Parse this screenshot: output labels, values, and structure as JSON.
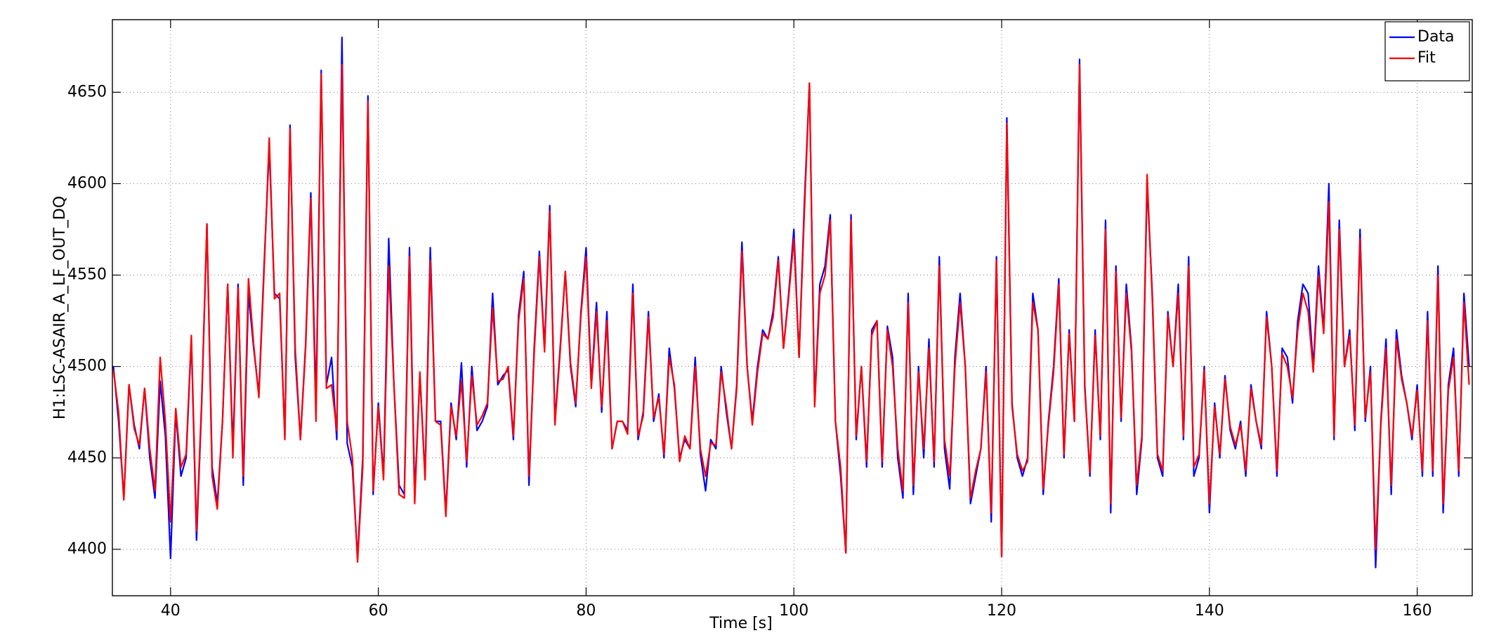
{
  "chart_data": {
    "type": "line",
    "xlabel": "Time [s]",
    "ylabel": "H1:LSC-ASAIR_A_LF_OUT_DQ",
    "x": [
      34.5,
      35,
      35.5,
      36,
      36.5,
      37,
      37.5,
      38,
      38.5,
      39,
      39.5,
      40,
      40.5,
      41,
      41.5,
      42,
      42.5,
      43,
      43.5,
      44,
      44.5,
      45,
      45.5,
      46,
      46.5,
      47,
      47.5,
      48,
      48.5,
      49,
      49.5,
      50,
      50.5,
      51,
      51.5,
      52,
      52.5,
      53,
      53.5,
      54,
      54.5,
      55,
      55.5,
      56,
      56.5,
      57,
      57.5,
      58,
      58.5,
      59,
      59.5,
      60,
      60.5,
      61,
      61.5,
      62,
      62.5,
      63,
      63.5,
      64,
      64.5,
      65,
      65.5,
      66,
      66.5,
      67,
      67.5,
      68,
      68.5,
      69,
      69.5,
      70,
      70.5,
      71,
      71.5,
      72,
      72.5,
      73,
      73.5,
      74,
      74.5,
      75,
      75.5,
      76,
      76.5,
      77,
      77.5,
      78,
      78.5,
      79,
      79.5,
      80,
      80.5,
      81,
      81.5,
      82,
      82.5,
      83,
      83.5,
      84,
      84.5,
      85,
      85.5,
      86,
      86.5,
      87,
      87.5,
      88,
      88.5,
      89,
      89.5,
      90,
      90.5,
      91,
      91.5,
      92,
      92.5,
      93,
      93.5,
      94,
      94.5,
      95,
      95.5,
      96,
      96.5,
      97,
      97.5,
      98,
      98.5,
      99,
      99.5,
      100,
      100.5,
      101,
      101.5,
      102,
      102.5,
      103,
      103.5,
      104,
      104.5,
      105,
      105.5,
      106,
      106.5,
      107,
      107.5,
      108,
      108.5,
      109,
      109.5,
      110,
      110.5,
      111,
      111.5,
      112,
      112.5,
      113,
      113.5,
      114,
      114.5,
      115,
      115.5,
      116,
      116.5,
      117,
      117.5,
      118,
      118.5,
      119,
      119.5,
      120,
      120.5,
      121,
      121.5,
      122,
      122.5,
      123,
      123.5,
      124,
      124.5,
      125,
      125.5,
      126,
      126.5,
      127,
      127.5,
      128,
      128.5,
      129,
      129.5,
      130,
      130.5,
      131,
      131.5,
      132,
      132.5,
      133,
      133.5,
      134,
      134.5,
      135,
      135.5,
      136,
      136.5,
      137,
      137.5,
      138,
      138.5,
      139,
      139.5,
      140,
      140.5,
      141,
      141.5,
      142,
      142.5,
      143,
      143.5,
      144,
      144.5,
      145,
      145.5,
      146,
      146.5,
      147,
      147.5,
      148,
      148.5,
      149,
      149.5,
      150,
      150.5,
      151,
      151.5,
      152,
      152.5,
      153,
      153.5,
      154,
      154.5,
      155,
      155.5,
      156,
      156.5,
      157,
      157.5,
      158,
      158.5,
      159,
      159.5,
      160,
      160.5,
      161,
      161.5,
      162,
      162.5,
      163,
      163.5,
      164,
      164.5,
      165
    ],
    "series": [
      {
        "name": "Data",
        "color": "#0000ff",
        "values": [
          4500,
          4470,
          4428,
          4490,
          4468,
          4455,
          4488,
          4450,
          4428,
          4492,
          4462,
          4395,
          4475,
          4440,
          4450,
          4515,
          4405,
          4480,
          4578,
          4445,
          4425,
          4470,
          4545,
          4455,
          4545,
          4435,
          4540,
          4510,
          4485,
          4555,
          4620,
          4540,
          4537,
          4462,
          4632,
          4505,
          4460,
          4512,
          4595,
          4480,
          4662,
          4490,
          4505,
          4460,
          4680,
          4458,
          4445,
          4395,
          4450,
          4648,
          4430,
          4480,
          4440,
          4570,
          4490,
          4435,
          4430,
          4565,
          4430,
          4495,
          4440,
          4565,
          4470,
          4470,
          4420,
          4480,
          4460,
          4502,
          4445,
          4500,
          4465,
          4470,
          4478,
          4540,
          4490,
          4495,
          4498,
          4460,
          4528,
          4552,
          4435,
          4510,
          4563,
          4510,
          4588,
          4470,
          4510,
          4552,
          4500,
          4478,
          4530,
          4565,
          4490,
          4535,
          4475,
          4530,
          4455,
          4470,
          4470,
          4465,
          4545,
          4460,
          4475,
          4530,
          4470,
          4485,
          4450,
          4510,
          4488,
          4450,
          4460,
          4455,
          4505,
          4452,
          4432,
          4460,
          4455,
          4500,
          4475,
          4455,
          4490,
          4568,
          4500,
          4470,
          4500,
          4520,
          4515,
          4530,
          4560,
          4510,
          4540,
          4575,
          4505,
          4588,
          4655,
          4480,
          4545,
          4555,
          4583,
          4470,
          4440,
          4398,
          4583,
          4460,
          4500,
          4445,
          4520,
          4525,
          4445,
          4522,
          4505,
          4450,
          4428,
          4540,
          4430,
          4500,
          4450,
          4515,
          4445,
          4560,
          4455,
          4433,
          4505,
          4540,
          4500,
          4425,
          4440,
          4455,
          4500,
          4415,
          4560,
          4396,
          4636,
          4480,
          4450,
          4440,
          4450,
          4540,
          4520,
          4430,
          4470,
          4500,
          4548,
          4450,
          4520,
          4470,
          4668,
          4490,
          4440,
          4520,
          4460,
          4580,
          4420,
          4555,
          4470,
          4545,
          4510,
          4430,
          4460,
          4600,
          4540,
          4450,
          4440,
          4530,
          4500,
          4545,
          4460,
          4560,
          4440,
          4450,
          4500,
          4420,
          4480,
          4450,
          4495,
          4465,
          4455,
          4470,
          4440,
          4490,
          4470,
          4455,
          4530,
          4500,
          4440,
          4510,
          4505,
          4480,
          4525,
          4545,
          4540,
          4500,
          4555,
          4520,
          4600,
          4460,
          4580,
          4500,
          4520,
          4465,
          4575,
          4470,
          4500,
          4390,
          4470,
          4515,
          4430,
          4520,
          4495,
          4480,
          4460,
          4490,
          4440,
          4530,
          4440,
          4555,
          4420,
          4490,
          4510,
          4440,
          4540,
          4500
        ]
      },
      {
        "name": "Fit",
        "color": "#ff0000",
        "values": [
          4498,
          4475,
          4427,
          4490,
          4466,
          4457,
          4488,
          4455,
          4432,
          4505,
          4470,
          4415,
          4477,
          4445,
          4452,
          4517,
          4410,
          4482,
          4578,
          4440,
          4422,
          4470,
          4545,
          4450,
          4543,
          4440,
          4548,
          4512,
          4483,
          4552,
          4625,
          4537,
          4540,
          4460,
          4630,
          4510,
          4460,
          4510,
          4592,
          4470,
          4660,
          4488,
          4490,
          4465,
          4665,
          4470,
          4450,
          4393,
          4445,
          4645,
          4432,
          4478,
          4438,
          4555,
          4490,
          4430,
          4428,
          4560,
          4425,
          4497,
          4438,
          4558,
          4470,
          4468,
          4418,
          4478,
          4462,
          4492,
          4448,
          4495,
          4468,
          4473,
          4480,
          4532,
          4492,
          4493,
          4500,
          4462,
          4525,
          4548,
          4440,
          4507,
          4560,
          4508,
          4585,
          4468,
          4508,
          4552,
          4502,
          4480,
          4528,
          4560,
          4488,
          4530,
          4478,
          4525,
          4455,
          4470,
          4470,
          4463,
          4540,
          4462,
          4473,
          4527,
          4472,
          4483,
          4452,
          4505,
          4490,
          4448,
          4462,
          4455,
          4500,
          4455,
          4440,
          4458,
          4457,
          4497,
          4478,
          4455,
          4488,
          4563,
          4500,
          4468,
          4497,
          4518,
          4515,
          4527,
          4558,
          4510,
          4538,
          4570,
          4505,
          4583,
          4655,
          4478,
          4540,
          4550,
          4580,
          4470,
          4445,
          4398,
          4580,
          4462,
          4500,
          4448,
          4517,
          4525,
          4448,
          4520,
          4500,
          4455,
          4432,
          4535,
          4435,
          4497,
          4455,
          4510,
          4448,
          4555,
          4460,
          4440,
          4500,
          4535,
          4500,
          4428,
          4443,
          4455,
          4497,
          4420,
          4558,
          4396,
          4633,
          4478,
          4452,
          4443,
          4448,
          4535,
          4520,
          4433,
          4468,
          4497,
          4545,
          4452,
          4518,
          4470,
          4665,
          4488,
          4442,
          4517,
          4462,
          4575,
          4425,
          4552,
          4472,
          4540,
          4508,
          4435,
          4462,
          4605,
          4537,
          4452,
          4443,
          4528,
          4500,
          4540,
          4462,
          4555,
          4445,
          4452,
          4498,
          4425,
          4478,
          4452,
          4493,
          4467,
          4457,
          4468,
          4443,
          4488,
          4470,
          4457,
          4527,
          4500,
          4443,
          4507,
          4500,
          4483,
          4520,
          4540,
          4530,
          4497,
          4550,
          4518,
          4590,
          4462,
          4575,
          4500,
          4517,
          4468,
          4570,
          4472,
          4497,
          4400,
          4468,
          4510,
          4435,
          4515,
          4493,
          4480,
          4462,
          4487,
          4443,
          4525,
          4443,
          4550,
          4425,
          4487,
          4505,
          4443,
          4535,
          4490
        ]
      }
    ],
    "xlim": [
      34.4,
      165.3
    ],
    "ylim": [
      4374.6,
      4689.7
    ],
    "xticks": [
      40,
      60,
      80,
      100,
      120,
      140,
      160
    ],
    "yticks": [
      4400,
      4450,
      4500,
      4550,
      4600,
      4650
    ],
    "grid": true,
    "legend": "upper right"
  }
}
